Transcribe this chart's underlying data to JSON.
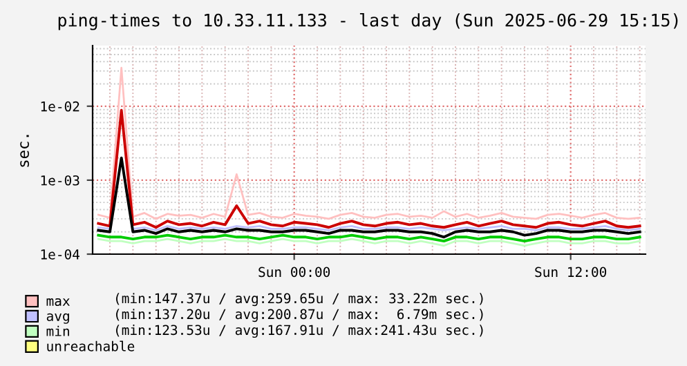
{
  "chart_data": {
    "type": "line",
    "title": "ping-times to 10.33.11.133 - last day (Sun 2025-06-29 15:15)",
    "ylabel": "sec.",
    "x": [
      "2025-06-28T15:30",
      "2025-06-28T16:00",
      "2025-06-28T16:30",
      "2025-06-28T17:00",
      "2025-06-28T17:30",
      "2025-06-28T18:00",
      "2025-06-28T18:30",
      "2025-06-28T19:00",
      "2025-06-28T19:30",
      "2025-06-28T20:00",
      "2025-06-28T20:30",
      "2025-06-28T21:00",
      "2025-06-28T21:30",
      "2025-06-28T22:00",
      "2025-06-28T22:30",
      "2025-06-28T23:00",
      "2025-06-28T23:30",
      "2025-06-29T00:00",
      "2025-06-29T00:30",
      "2025-06-29T01:00",
      "2025-06-29T01:30",
      "2025-06-29T02:00",
      "2025-06-29T02:30",
      "2025-06-29T03:00",
      "2025-06-29T03:30",
      "2025-06-29T04:00",
      "2025-06-29T04:30",
      "2025-06-29T05:00",
      "2025-06-29T05:30",
      "2025-06-29T06:00",
      "2025-06-29T06:30",
      "2025-06-29T07:00",
      "2025-06-29T07:30",
      "2025-06-29T08:00",
      "2025-06-29T08:30",
      "2025-06-29T09:00",
      "2025-06-29T09:30",
      "2025-06-29T10:00",
      "2025-06-29T10:30",
      "2025-06-29T11:00",
      "2025-06-29T11:30",
      "2025-06-29T12:00",
      "2025-06-29T12:30",
      "2025-06-29T13:00",
      "2025-06-29T13:30",
      "2025-06-29T14:00",
      "2025-06-29T14:30",
      "2025-06-29T15:00"
    ],
    "series": [
      {
        "name": "max",
        "color": "#ffc0c0",
        "values": [
          0.00034,
          0.00031,
          0.033,
          0.00032,
          0.00036,
          0.0003,
          0.00035,
          0.00033,
          0.00034,
          0.00031,
          0.00035,
          0.00032,
          0.0012,
          0.00034,
          0.00036,
          0.00032,
          0.00031,
          0.00035,
          0.00033,
          0.00032,
          0.0003,
          0.00034,
          0.00036,
          0.00032,
          0.00031,
          0.00034,
          0.00035,
          0.00032,
          0.00033,
          0.00031,
          0.00038,
          0.00032,
          0.00035,
          0.00031,
          0.00033,
          0.00036,
          0.00032,
          0.00031,
          0.0003,
          0.00034,
          0.00035,
          0.00033,
          0.00031,
          0.00034,
          0.00036,
          0.00031,
          0.0003,
          0.00031
        ]
      },
      {
        "name": "avg",
        "color": "#c0c0ff",
        "values": [
          0.00023,
          0.00022,
          0.0019,
          0.00022,
          0.00023,
          0.00021,
          0.00024,
          0.00022,
          0.00023,
          0.00022,
          0.00023,
          0.00022,
          0.00024,
          0.00023,
          0.00024,
          0.00022,
          0.00022,
          0.00023,
          0.00023,
          0.00022,
          0.00021,
          0.00023,
          0.00024,
          0.00022,
          0.00022,
          0.00023,
          0.00023,
          0.00022,
          0.00023,
          0.00022,
          0.00021,
          0.00022,
          0.00023,
          0.00022,
          0.00023,
          0.00024,
          0.00022,
          0.00022,
          0.00021,
          0.00023,
          0.00023,
          0.00022,
          0.00022,
          0.00023,
          0.00024,
          0.00022,
          0.00021,
          0.00022
        ]
      },
      {
        "name": "min",
        "color": "#c0ffc0",
        "values": [
          0.00016,
          0.00015,
          0.00015,
          0.00014,
          0.00015,
          0.00015,
          0.00016,
          0.00015,
          0.00014,
          0.00015,
          0.00015,
          0.00016,
          0.00015,
          0.00015,
          0.00014,
          0.00015,
          0.00016,
          0.00015,
          0.00015,
          0.00014,
          0.00015,
          0.00015,
          0.00016,
          0.00015,
          0.00014,
          0.00015,
          0.00015,
          0.00014,
          0.00015,
          0.00014,
          0.00013,
          0.00015,
          0.00015,
          0.00014,
          0.00015,
          0.00015,
          0.00014,
          0.00013,
          0.00014,
          0.00015,
          0.00015,
          0.00014,
          0.00014,
          0.00015,
          0.00015,
          0.00014,
          0.00014,
          0.00015
        ]
      },
      {
        "name": "unreachable",
        "color": "#ffff80",
        "values": [
          null,
          null,
          null,
          null,
          null,
          null,
          null,
          null,
          null,
          null,
          null,
          null,
          null,
          null,
          null,
          null,
          null,
          null,
          null,
          null,
          null,
          null,
          null,
          null,
          null,
          null,
          null,
          null,
          null,
          null,
          null,
          null,
          null,
          null,
          null,
          null,
          null,
          null,
          null,
          null,
          null,
          null,
          null,
          null,
          null,
          null,
          null,
          null
        ]
      },
      {
        "color": "#cc0000",
        "values": [
          0.00026,
          0.00024,
          0.0088,
          0.00025,
          0.00027,
          0.00023,
          0.00028,
          0.00025,
          0.00026,
          0.00024,
          0.00027,
          0.00025,
          0.00045,
          0.00026,
          0.00028,
          0.00025,
          0.00024,
          0.00027,
          0.00026,
          0.00025,
          0.00023,
          0.00026,
          0.00028,
          0.00025,
          0.00024,
          0.00026,
          0.00027,
          0.00025,
          0.00026,
          0.00024,
          0.00023,
          0.00025,
          0.00027,
          0.00024,
          0.00026,
          0.00028,
          0.00025,
          0.00024,
          0.00023,
          0.00026,
          0.00027,
          0.00025,
          0.00024,
          0.00026,
          0.00028,
          0.00024,
          0.00023,
          0.00024
        ]
      },
      {
        "color": "#000000",
        "values": [
          0.00021,
          0.0002,
          0.002,
          0.0002,
          0.00021,
          0.00019,
          0.00022,
          0.0002,
          0.00021,
          0.0002,
          0.00021,
          0.0002,
          0.00022,
          0.00021,
          0.00021,
          0.0002,
          0.0002,
          0.00021,
          0.00021,
          0.0002,
          0.00019,
          0.00021,
          0.00021,
          0.0002,
          0.0002,
          0.00021,
          0.00021,
          0.0002,
          0.0002,
          0.00019,
          0.00017,
          0.0002,
          0.00021,
          0.0002,
          0.0002,
          0.00021,
          0.0002,
          0.00018,
          0.00019,
          0.00021,
          0.00021,
          0.0002,
          0.0002,
          0.00021,
          0.00021,
          0.0002,
          0.00019,
          0.0002
        ]
      },
      {
        "color": "#00cc00",
        "values": [
          0.00018,
          0.00017,
          0.00017,
          0.00016,
          0.00017,
          0.00017,
          0.00018,
          0.00017,
          0.00016,
          0.00017,
          0.00017,
          0.00018,
          0.00017,
          0.00017,
          0.00016,
          0.00017,
          0.00018,
          0.00017,
          0.00017,
          0.00016,
          0.00017,
          0.00017,
          0.00018,
          0.00017,
          0.00016,
          0.00017,
          0.00017,
          0.00016,
          0.00017,
          0.00016,
          0.00015,
          0.00017,
          0.00017,
          0.00016,
          0.00017,
          0.00017,
          0.00016,
          0.00015,
          0.00016,
          0.00017,
          0.00017,
          0.00016,
          0.00016,
          0.00017,
          0.00017,
          0.00016,
          0.00016,
          0.00017
        ]
      }
    ],
    "annotations": [
      "(min:147.37u / avg:259.65u / max: 33.22m sec.)",
      "(min:137.20u / avg:200.87u / max:  6.79m sec.)",
      "(min:123.53u / avg:167.91u / max:241.43u sec.)"
    ],
    "log": "y",
    "xlim": [
      "2025-06-28T15:15",
      "2025-06-29T15:15"
    ],
    "ylim": [
      0.0001,
      0.066
    ],
    "xticks": [
      {
        "value": "2025-06-29T00:00",
        "label": "Sun 00:00"
      },
      {
        "value": "2025-06-29T12:00",
        "label": "Sun 12:00"
      }
    ],
    "yticks": [
      {
        "value": 0.0001,
        "label": "1e-04"
      },
      {
        "value": 0.001,
        "label": "1e-03"
      },
      {
        "value": 0.01,
        "label": "1e-02"
      }
    ],
    "grid": true,
    "legend": "bottom"
  }
}
